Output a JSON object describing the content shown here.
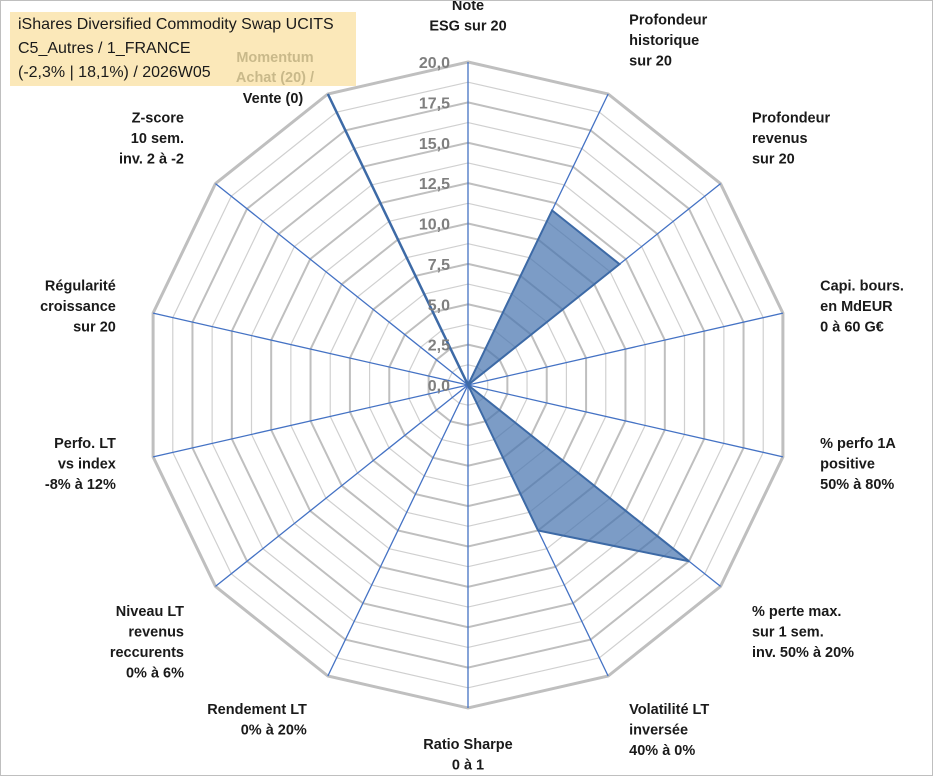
{
  "info": {
    "line1": "iShares Diversified Commodity Swap UCITS",
    "line2": "C5_Autres / 1_FRANCE",
    "line3": "(-2,3% | 18,1%) / 2026W05",
    "momentum_line1": "Momentum",
    "momentum_line2": "Achat (20) /"
  },
  "chart_data": {
    "type": "radar",
    "title": "",
    "rmin": 0,
    "rmax": 20,
    "tick_step": 2.5,
    "tick_labels": [
      "0,0",
      "2,5",
      "5,0",
      "7,5",
      "10,0",
      "12,5",
      "15,0",
      "17,5",
      "20,0"
    ],
    "axes": [
      [
        "Note",
        "ESG sur 20"
      ],
      [
        "Profondeur",
        "historique",
        "sur 20"
      ],
      [
        "Profondeur",
        "revenus",
        "sur 20"
      ],
      [
        "Capi. bours.",
        "en MdEUR",
        "0 à 60 G€"
      ],
      [
        "% perfo 1A",
        "positive",
        "50% à 80%"
      ],
      [
        "% perte max.",
        "sur 1 sem.",
        "inv. 50% à 20%"
      ],
      [
        "Volatilité LT",
        "inversée",
        "40% à 0%"
      ],
      [
        "Ratio Sharpe",
        "0 à 1"
      ],
      [
        "Rendement LT",
        "0% à 20%"
      ],
      [
        "Niveau LT",
        "revenus",
        "reccurents",
        "0% à 6%"
      ],
      [
        "Perfo. LT",
        "vs index",
        "-8% à 12%"
      ],
      [
        "Régularité",
        "croissance",
        "sur 20"
      ],
      [
        "Z-score",
        "10 sem.",
        "inv. 2 à -2"
      ],
      [
        "Vente (0)"
      ]
    ],
    "series": [
      {
        "values": [
          0,
          12,
          12,
          0,
          0,
          17.5,
          10,
          0,
          0,
          0,
          0,
          0,
          0,
          0
        ],
        "color": "#4a76b0"
      }
    ],
    "momentum_value": 20,
    "grid": true,
    "legend": "none"
  }
}
